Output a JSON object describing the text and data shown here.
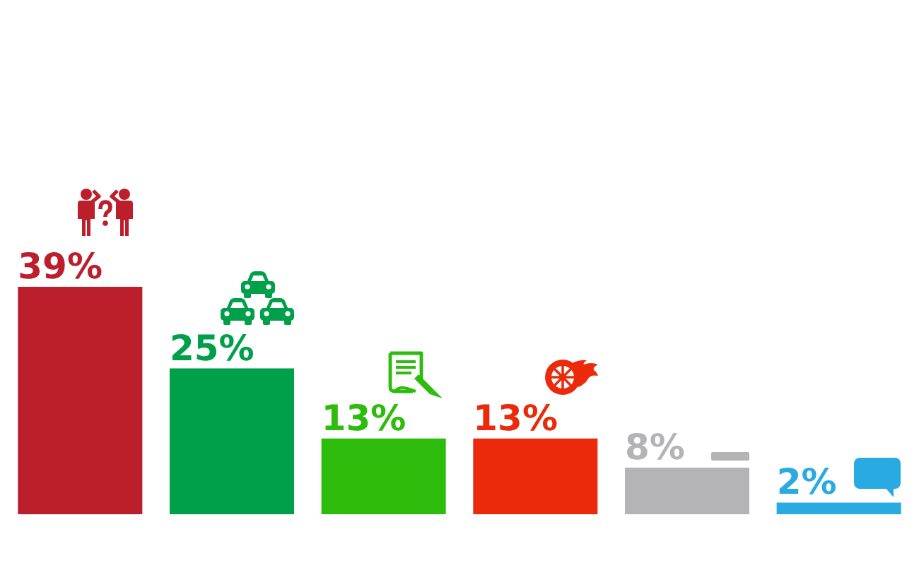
{
  "chart_data": {
    "type": "bar",
    "categories": [
      null,
      null,
      null,
      null,
      null,
      null
    ],
    "values": [
      39,
      25,
      13,
      13,
      8,
      2
    ],
    "colors": [
      "#bc1e2c",
      "#00a04a",
      "#2dbc0c",
      "#eb2a0c",
      "#b4b4b6",
      "#29abe2"
    ],
    "value_labels": [
      "39%",
      "25%",
      "13%",
      "13%",
      "8%",
      "2%"
    ]
  }
}
